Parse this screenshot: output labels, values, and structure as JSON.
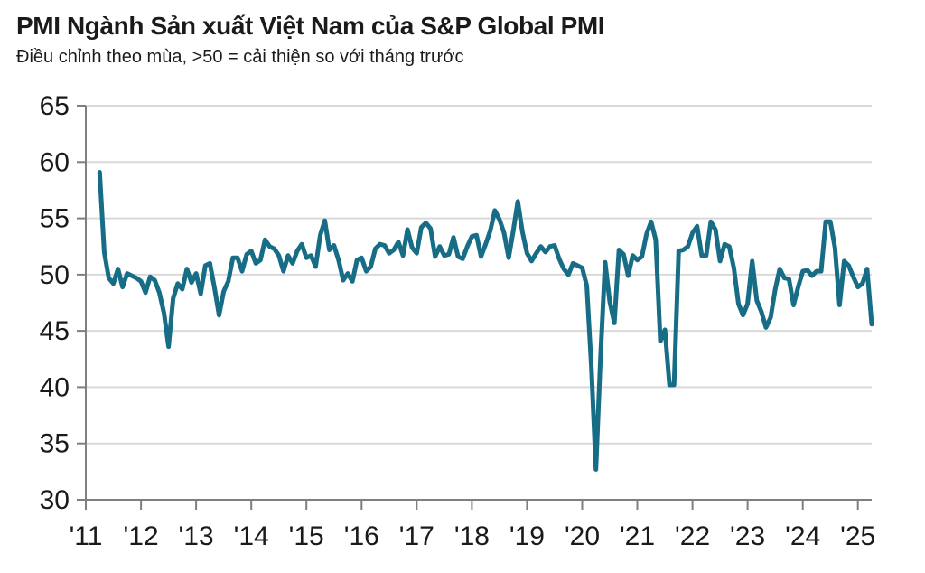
{
  "header": {
    "title": "PMI Ngành Sản xuất Việt Nam của S&P Global PMI",
    "subtitle": "Điều chỉnh theo mùa, >50 = cải thiện so với tháng trước"
  },
  "chart_data": {
    "type": "line",
    "series_name": "PMI Ngành Sản xuất Việt Nam",
    "frequency": "monthly",
    "start": "2011-04",
    "end": "2025-04",
    "ylim": [
      30,
      65
    ],
    "y_ticks": [
      30,
      35,
      40,
      45,
      50,
      55,
      60,
      65
    ],
    "x_tick_labels": [
      "'11",
      "'12",
      "'13",
      "'14",
      "'15",
      "'16",
      "'17",
      "'18",
      "'19",
      "'20",
      "'21",
      "'22",
      "'23",
      "'24",
      "'25"
    ],
    "grid": true,
    "legend": "none",
    "line_color": "#176D86",
    "axis_color": "#7f7f7f",
    "grid_color": "#d9d9d9",
    "values": [
      59.1,
      52.0,
      49.7,
      49.2,
      50.5,
      48.9,
      50.1,
      49.9,
      49.7,
      49.4,
      48.4,
      49.8,
      49.5,
      48.4,
      46.6,
      43.6,
      47.9,
      49.2,
      48.7,
      50.5,
      49.3,
      50.1,
      48.3,
      50.8,
      51.0,
      48.8,
      46.4,
      48.5,
      49.4,
      51.5,
      51.5,
      50.3,
      51.8,
      52.1,
      51.0,
      51.3,
      53.1,
      52.5,
      52.3,
      51.7,
      50.3,
      51.7,
      51.0,
      52.1,
      52.7,
      51.5,
      51.7,
      50.7,
      53.5,
      54.8,
      52.2,
      52.6,
      51.3,
      49.5,
      50.1,
      49.4,
      51.3,
      51.5,
      50.3,
      50.7,
      52.3,
      52.7,
      52.6,
      51.9,
      52.2,
      52.9,
      51.7,
      54.0,
      52.4,
      51.9,
      54.2,
      54.6,
      54.1,
      51.6,
      52.5,
      51.7,
      51.8,
      53.3,
      51.6,
      51.4,
      52.5,
      53.4,
      53.5,
      51.6,
      52.7,
      53.9,
      55.7,
      54.9,
      53.7,
      51.5,
      53.9,
      56.5,
      53.8,
      51.9,
      51.2,
      51.9,
      52.5,
      52.0,
      52.5,
      52.6,
      51.4,
      50.5,
      50.0,
      51.0,
      50.8,
      50.6,
      49.0,
      41.9,
      32.7,
      42.7,
      51.1,
      47.6,
      45.7,
      52.2,
      51.8,
      49.9,
      51.7,
      51.3,
      51.6,
      53.6,
      54.7,
      53.1,
      44.1,
      45.1,
      40.2,
      40.2,
      52.1,
      52.2,
      52.5,
      53.7,
      54.3,
      51.7,
      51.7,
      54.7,
      54.0,
      51.2,
      52.7,
      52.5,
      50.6,
      47.4,
      46.4,
      47.4,
      51.2,
      47.7,
      46.7,
      45.3,
      46.2,
      48.7,
      50.5,
      49.7,
      49.6,
      47.3,
      48.9,
      50.3,
      50.4,
      49.9,
      50.3,
      50.3,
      54.7,
      54.7,
      52.4,
      47.3,
      51.2,
      50.8,
      49.8,
      48.9,
      49.2,
      50.5,
      45.6
    ]
  }
}
